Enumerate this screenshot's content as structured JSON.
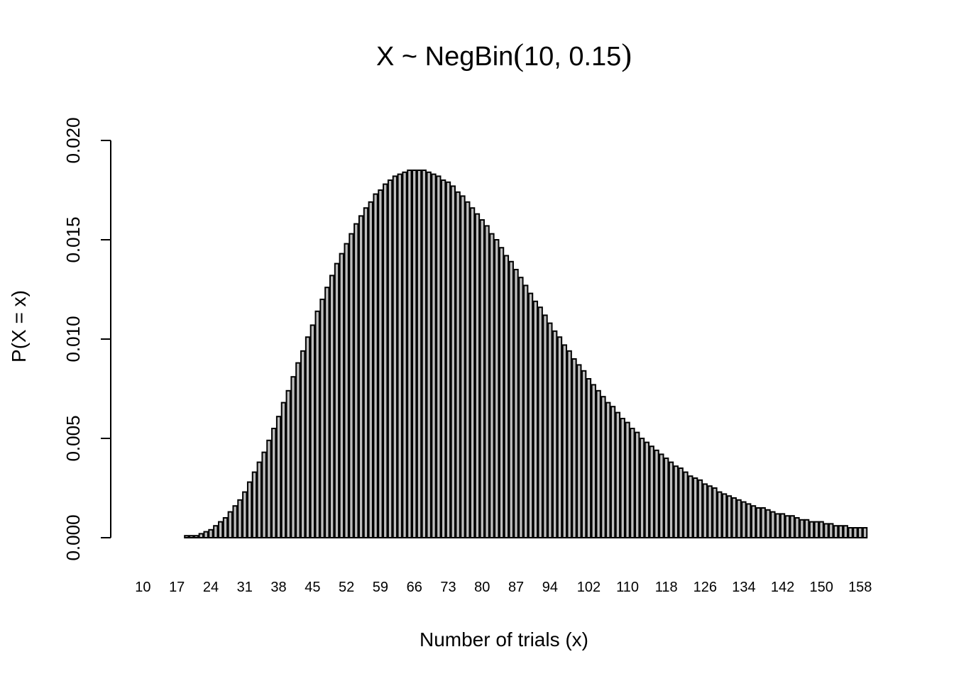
{
  "chart_data": {
    "type": "bar",
    "title": {
      "prefix": "X ~ NegBin",
      "open": "(",
      "params": "10, 0.15",
      "close": ")"
    },
    "xlabel": "Number of trials (x)",
    "ylabel": "P(X = x)",
    "ylim": [
      0,
      0.021
    ],
    "yticks": [
      "0.000",
      "0.005",
      "0.010",
      "0.015",
      "0.020"
    ],
    "x_min": 10,
    "x_max": 159,
    "x_tick_labels": [
      "10",
      "17",
      "24",
      "31",
      "38",
      "45",
      "52",
      "59",
      "66",
      "73",
      "80",
      "87",
      "94",
      "102",
      "110",
      "118",
      "126",
      "134",
      "142",
      "150",
      "158"
    ],
    "distribution": {
      "r": 10,
      "p": 0.15
    },
    "bar_fill": "#bebebe",
    "bar_stroke": "#000000",
    "values": [
      0.0,
      0.0,
      0.0,
      0.0,
      0.0,
      0.0,
      0.0,
      0.0,
      0.0,
      0.0001,
      0.0001,
      0.0001,
      0.0002,
      0.0003,
      0.0004,
      0.0006,
      0.0008,
      0.001,
      0.0013,
      0.0016,
      0.0019,
      0.0023,
      0.0028,
      0.0033,
      0.0038,
      0.0043,
      0.0049,
      0.0055,
      0.0061,
      0.0068,
      0.0074,
      0.0081,
      0.0088,
      0.0094,
      0.0101,
      0.0107,
      0.0114,
      0.012,
      0.0126,
      0.0132,
      0.0138,
      0.0143,
      0.0148,
      0.0153,
      0.0158,
      0.0162,
      0.0166,
      0.0169,
      0.0173,
      0.0175,
      0.0178,
      0.018,
      0.0182,
      0.0183,
      0.0184,
      0.0185,
      0.0185,
      0.0185,
      0.0185,
      0.0184,
      0.0183,
      0.0182,
      0.018,
      0.0179,
      0.0177,
      0.0174,
      0.0172,
      0.0169,
      0.0166,
      0.0163,
      0.016,
      0.0157,
      0.0153,
      0.015,
      0.0146,
      0.0142,
      0.0139,
      0.0135,
      0.0131,
      0.0127,
      0.0123,
      0.0119,
      0.0116,
      0.0112,
      0.0108,
      0.0104,
      0.0101,
      0.0097,
      0.0094,
      0.009,
      0.0087,
      0.0084,
      0.008,
      0.0077,
      0.0074,
      0.0071,
      0.0068,
      0.0066,
      0.0063,
      0.006,
      0.0058,
      0.0055,
      0.0053,
      0.005,
      0.0048,
      0.0046,
      0.0044,
      0.0042,
      0.004,
      0.0038,
      0.0036,
      0.0035,
      0.0033,
      0.0031,
      0.003,
      0.0029,
      0.0027,
      0.0026,
      0.0025,
      0.0023,
      0.0022,
      0.0021,
      0.002,
      0.0019,
      0.0018,
      0.0017,
      0.0016,
      0.0015,
      0.0015,
      0.0014,
      0.0013,
      0.0012,
      0.0012,
      0.0011,
      0.0011,
      0.001,
      0.0009,
      0.0009,
      0.0008,
      0.0008,
      0.0008,
      0.0007,
      0.0007,
      0.0006,
      0.0006,
      0.0006,
      0.0005,
      0.0005,
      0.0005,
      0.0005
    ]
  }
}
